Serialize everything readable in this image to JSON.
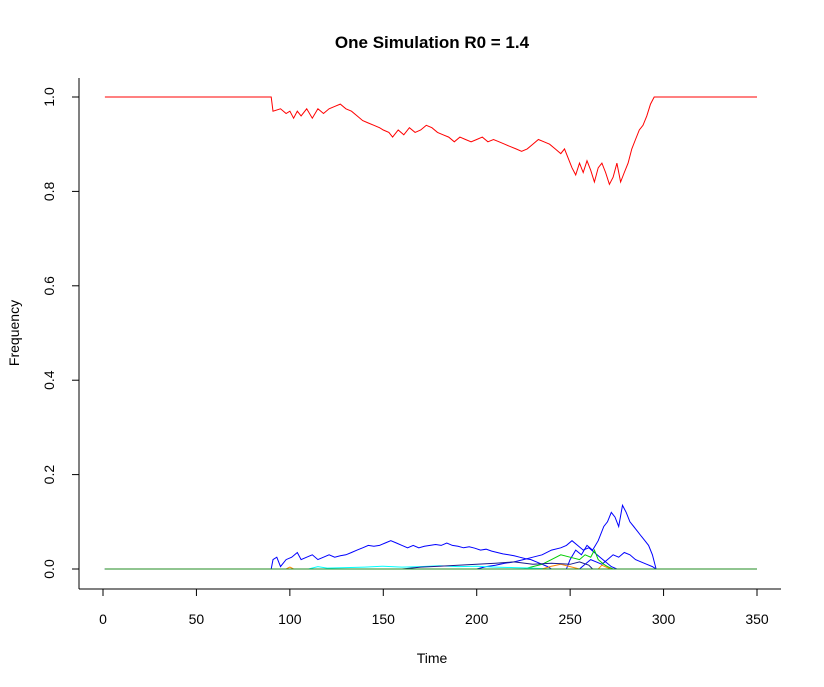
{
  "chart_data": {
    "type": "line",
    "title": "One Simulation R0 = 1.4",
    "xlabel": "Time",
    "ylabel": "Frequency",
    "xlim": [
      0,
      350
    ],
    "ylim": [
      0,
      1.0
    ],
    "x_ticks": [
      "0",
      "50",
      "100",
      "150",
      "200",
      "250",
      "300",
      "350"
    ],
    "y_ticks": [
      "0.0",
      "0.2",
      "0.4",
      "0.6",
      "0.8",
      "1.0"
    ],
    "grid": false,
    "legend": "none",
    "series": [
      {
        "color": "#ff0000",
        "points": [
          [
            1,
            1.0
          ],
          [
            90,
            1.0
          ],
          [
            91,
            0.97
          ],
          [
            95,
            0.975
          ],
          [
            98,
            0.965
          ],
          [
            100,
            0.97
          ],
          [
            102,
            0.955
          ],
          [
            104,
            0.97
          ],
          [
            106,
            0.96
          ],
          [
            109,
            0.975
          ],
          [
            112,
            0.955
          ],
          [
            115,
            0.975
          ],
          [
            118,
            0.965
          ],
          [
            121,
            0.975
          ],
          [
            124,
            0.98
          ],
          [
            127,
            0.985
          ],
          [
            130,
            0.975
          ],
          [
            133,
            0.97
          ],
          [
            136,
            0.96
          ],
          [
            139,
            0.95
          ],
          [
            142,
            0.945
          ],
          [
            145,
            0.94
          ],
          [
            148,
            0.935
          ],
          [
            150,
            0.93
          ],
          [
            153,
            0.925
          ],
          [
            155,
            0.915
          ],
          [
            158,
            0.93
          ],
          [
            161,
            0.92
          ],
          [
            164,
            0.935
          ],
          [
            167,
            0.925
          ],
          [
            170,
            0.93
          ],
          [
            173,
            0.94
          ],
          [
            176,
            0.935
          ],
          [
            179,
            0.925
          ],
          [
            182,
            0.92
          ],
          [
            185,
            0.915
          ],
          [
            188,
            0.905
          ],
          [
            191,
            0.915
          ],
          [
            194,
            0.91
          ],
          [
            197,
            0.905
          ],
          [
            200,
            0.91
          ],
          [
            203,
            0.915
          ],
          [
            206,
            0.905
          ],
          [
            209,
            0.91
          ],
          [
            212,
            0.905
          ],
          [
            215,
            0.9
          ],
          [
            218,
            0.895
          ],
          [
            221,
            0.89
          ],
          [
            224,
            0.885
          ],
          [
            227,
            0.89
          ],
          [
            230,
            0.9
          ],
          [
            233,
            0.91
          ],
          [
            236,
            0.905
          ],
          [
            239,
            0.9
          ],
          [
            242,
            0.89
          ],
          [
            245,
            0.88
          ],
          [
            247,
            0.89
          ],
          [
            249,
            0.87
          ],
          [
            251,
            0.85
          ],
          [
            253,
            0.835
          ],
          [
            255,
            0.86
          ],
          [
            257,
            0.84
          ],
          [
            259,
            0.865
          ],
          [
            261,
            0.845
          ],
          [
            263,
            0.82
          ],
          [
            265,
            0.85
          ],
          [
            267,
            0.86
          ],
          [
            269,
            0.84
          ],
          [
            271,
            0.815
          ],
          [
            273,
            0.83
          ],
          [
            275,
            0.86
          ],
          [
            277,
            0.82
          ],
          [
            279,
            0.84
          ],
          [
            281,
            0.86
          ],
          [
            283,
            0.89
          ],
          [
            285,
            0.91
          ],
          [
            287,
            0.93
          ],
          [
            289,
            0.94
          ],
          [
            291,
            0.96
          ],
          [
            293,
            0.985
          ],
          [
            295,
            1.0
          ],
          [
            350,
            1.0
          ]
        ]
      },
      {
        "color": "#0000ff",
        "points": [
          [
            1,
            0.0
          ],
          [
            90,
            0.0
          ],
          [
            91,
            0.02
          ],
          [
            93,
            0.025
          ],
          [
            95,
            0.005
          ],
          [
            98,
            0.02
          ],
          [
            101,
            0.025
          ],
          [
            104,
            0.035
          ],
          [
            106,
            0.02
          ],
          [
            109,
            0.025
          ],
          [
            112,
            0.03
          ],
          [
            115,
            0.02
          ],
          [
            118,
            0.025
          ],
          [
            121,
            0.03
          ],
          [
            124,
            0.025
          ],
          [
            127,
            0.028
          ],
          [
            130,
            0.03
          ],
          [
            133,
            0.035
          ],
          [
            136,
            0.04
          ],
          [
            139,
            0.045
          ],
          [
            142,
            0.05
          ],
          [
            145,
            0.048
          ],
          [
            148,
            0.05
          ],
          [
            151,
            0.055
          ],
          [
            154,
            0.06
          ],
          [
            157,
            0.055
          ],
          [
            160,
            0.05
          ],
          [
            163,
            0.045
          ],
          [
            166,
            0.05
          ],
          [
            169,
            0.045
          ],
          [
            172,
            0.048
          ],
          [
            175,
            0.05
          ],
          [
            178,
            0.052
          ],
          [
            181,
            0.05
          ],
          [
            184,
            0.055
          ],
          [
            187,
            0.05
          ],
          [
            190,
            0.048
          ],
          [
            193,
            0.045
          ],
          [
            196,
            0.047
          ],
          [
            199,
            0.044
          ],
          [
            202,
            0.04
          ],
          [
            205,
            0.042
          ],
          [
            208,
            0.038
          ],
          [
            211,
            0.035
          ],
          [
            214,
            0.032
          ],
          [
            217,
            0.03
          ],
          [
            220,
            0.028
          ],
          [
            223,
            0.025
          ],
          [
            226,
            0.022
          ],
          [
            229,
            0.02
          ],
          [
            232,
            0.015
          ],
          [
            235,
            0.01
          ],
          [
            238,
            0.005
          ],
          [
            240,
            0.0
          ],
          [
            350,
            0.0
          ]
        ]
      },
      {
        "color": "#0000ff",
        "points": [
          [
            1,
            0.0
          ],
          [
            248,
            0.0
          ],
          [
            250,
            0.02
          ],
          [
            253,
            0.04
          ],
          [
            256,
            0.03
          ],
          [
            259,
            0.05
          ],
          [
            262,
            0.04
          ],
          [
            265,
            0.06
          ],
          [
            268,
            0.09
          ],
          [
            270,
            0.1
          ],
          [
            272,
            0.12
          ],
          [
            274,
            0.11
          ],
          [
            276,
            0.09
          ],
          [
            278,
            0.135
          ],
          [
            280,
            0.12
          ],
          [
            282,
            0.1
          ],
          [
            284,
            0.09
          ],
          [
            286,
            0.08
          ],
          [
            288,
            0.07
          ],
          [
            290,
            0.06
          ],
          [
            292,
            0.05
          ],
          [
            294,
            0.03
          ],
          [
            296,
            0.0
          ],
          [
            350,
            0.0
          ]
        ]
      },
      {
        "color": "#0000ff",
        "points": [
          [
            1,
            0.0
          ],
          [
            200,
            0.0
          ],
          [
            205,
            0.005
          ],
          [
            210,
            0.008
          ],
          [
            215,
            0.012
          ],
          [
            220,
            0.015
          ],
          [
            225,
            0.02
          ],
          [
            230,
            0.025
          ],
          [
            235,
            0.03
          ],
          [
            240,
            0.04
          ],
          [
            245,
            0.045
          ],
          [
            248,
            0.05
          ],
          [
            251,
            0.06
          ],
          [
            254,
            0.05
          ],
          [
            257,
            0.04
          ],
          [
            260,
            0.045
          ],
          [
            263,
            0.035
          ],
          [
            266,
            0.025
          ],
          [
            269,
            0.015
          ],
          [
            272,
            0.005
          ],
          [
            275,
            0.0
          ],
          [
            350,
            0.0
          ]
        ]
      },
      {
        "color": "#0000ff",
        "points": [
          [
            1,
            0.0
          ],
          [
            255,
            0.0
          ],
          [
            258,
            0.01
          ],
          [
            261,
            0.02
          ],
          [
            264,
            0.015
          ],
          [
            267,
            0.01
          ],
          [
            270,
            0.02
          ],
          [
            273,
            0.03
          ],
          [
            276,
            0.025
          ],
          [
            279,
            0.035
          ],
          [
            282,
            0.03
          ],
          [
            285,
            0.02
          ],
          [
            288,
            0.015
          ],
          [
            291,
            0.01
          ],
          [
            294,
            0.005
          ],
          [
            296,
            0.0
          ],
          [
            350,
            0.0
          ]
        ]
      },
      {
        "color": "#00cc00",
        "points": [
          [
            1,
            0.0
          ],
          [
            225,
            0.0
          ],
          [
            230,
            0.005
          ],
          [
            235,
            0.01
          ],
          [
            240,
            0.02
          ],
          [
            245,
            0.03
          ],
          [
            250,
            0.025
          ],
          [
            255,
            0.02
          ],
          [
            258,
            0.03
          ],
          [
            261,
            0.025
          ],
          [
            263,
            0.04
          ],
          [
            265,
            0.02
          ],
          [
            268,
            0.01
          ],
          [
            270,
            0.005
          ],
          [
            273,
            0.0
          ],
          [
            350,
            0.0
          ]
        ]
      },
      {
        "color": "#00ffff",
        "points": [
          [
            1,
            0.0
          ],
          [
            110,
            0.0
          ],
          [
            115,
            0.005
          ],
          [
            120,
            0.002
          ],
          [
            130,
            0.003
          ],
          [
            140,
            0.004
          ],
          [
            150,
            0.006
          ],
          [
            160,
            0.004
          ],
          [
            170,
            0.005
          ],
          [
            180,
            0.007
          ],
          [
            190,
            0.005
          ],
          [
            200,
            0.006
          ],
          [
            210,
            0.004
          ],
          [
            220,
            0.003
          ],
          [
            230,
            0.002
          ],
          [
            240,
            0.0
          ],
          [
            350,
            0.0
          ]
        ]
      },
      {
        "color": "#ff8800",
        "points": [
          [
            1,
            0.0
          ],
          [
            98,
            0.0
          ],
          [
            100,
            0.004
          ],
          [
            102,
            0.0
          ],
          [
            235,
            0.0
          ],
          [
            240,
            0.006
          ],
          [
            245,
            0.01
          ],
          [
            250,
            0.005
          ],
          [
            255,
            0.0
          ],
          [
            265,
            0.0
          ],
          [
            267,
            0.008
          ],
          [
            270,
            0.003
          ],
          [
            272,
            0.0
          ],
          [
            350,
            0.0
          ]
        ]
      },
      {
        "color": "#1a1a8c",
        "points": [
          [
            1,
            0.0
          ],
          [
            160,
            0.0
          ],
          [
            170,
            0.004
          ],
          [
            180,
            0.006
          ],
          [
            190,
            0.008
          ],
          [
            200,
            0.01
          ],
          [
            210,
            0.012
          ],
          [
            220,
            0.015
          ],
          [
            230,
            0.01
          ],
          [
            240,
            0.012
          ],
          [
            250,
            0.01
          ],
          [
            255,
            0.015
          ],
          [
            260,
            0.008
          ],
          [
            262,
            0.0
          ],
          [
            350,
            0.0
          ]
        ]
      },
      {
        "color": "#228b22",
        "points": [
          [
            1,
            0.0
          ],
          [
            350,
            0.0
          ]
        ]
      }
    ]
  }
}
